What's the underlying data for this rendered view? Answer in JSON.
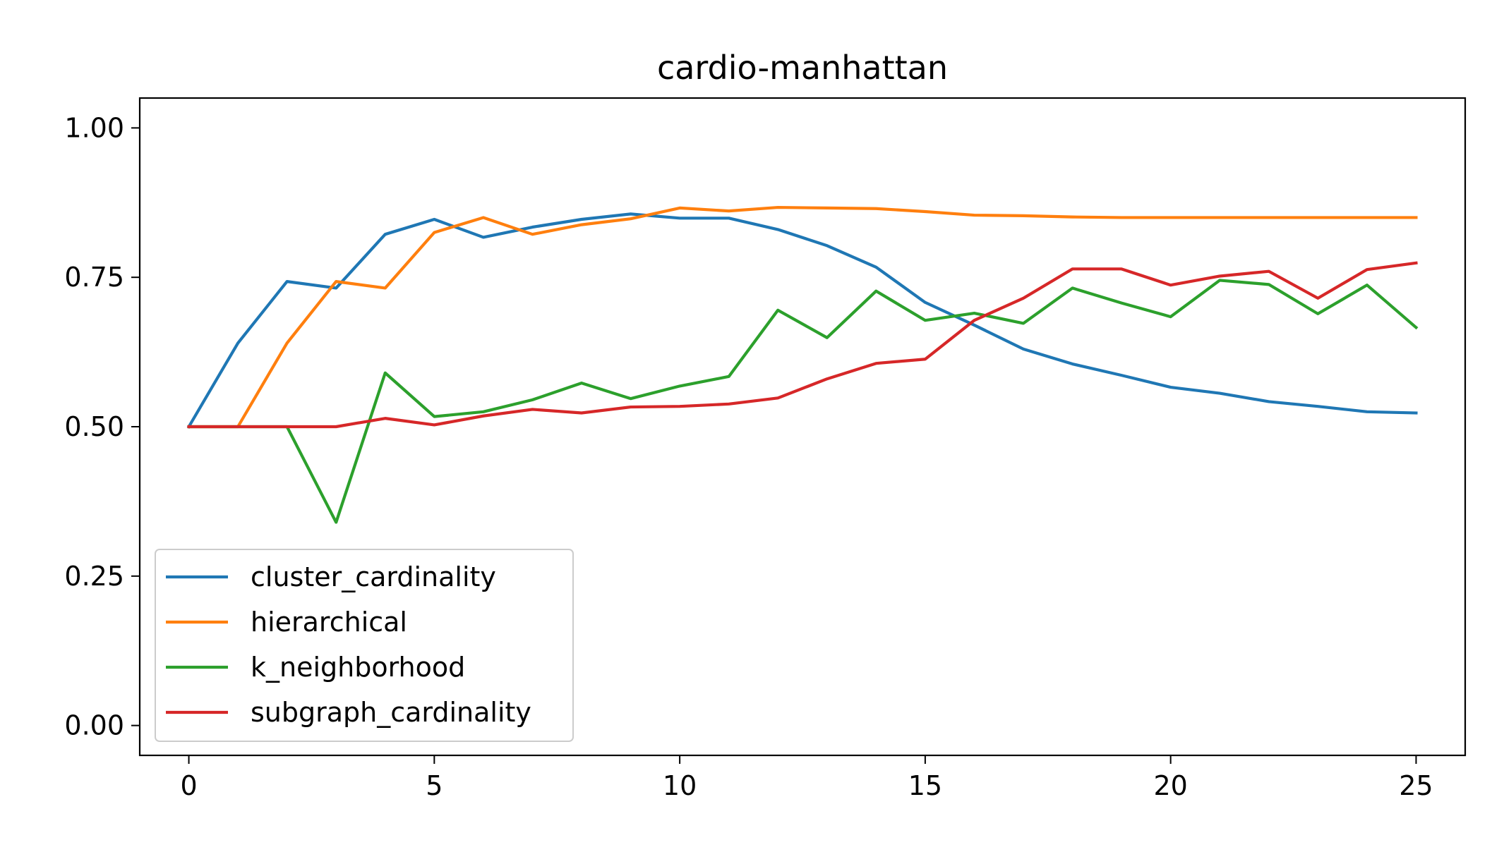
{
  "chart_data": {
    "type": "line",
    "title": "cardio-manhattan",
    "xlabel": "",
    "ylabel": "",
    "xlim": [
      -1,
      26
    ],
    "ylim": [
      -0.05,
      1.05
    ],
    "xticks": [
      0,
      5,
      10,
      15,
      20,
      25
    ],
    "xtick_labels": [
      "0",
      "5",
      "10",
      "15",
      "20",
      "25"
    ],
    "yticks": [
      0.0,
      0.25,
      0.5,
      0.75,
      1.0
    ],
    "ytick_labels": [
      "0.00",
      "0.25",
      "0.50",
      "0.75",
      "1.00"
    ],
    "grid": false,
    "legend_position": "lower-left",
    "x": [
      0,
      1,
      2,
      3,
      4,
      5,
      6,
      7,
      8,
      9,
      10,
      11,
      12,
      13,
      14,
      15,
      16,
      17,
      18,
      19,
      20,
      21,
      22,
      23,
      24,
      25
    ],
    "series": [
      {
        "name": "cluster_cardinality",
        "color": "#1f77b4",
        "values": [
          0.5,
          0.64,
          0.743,
          0.732,
          0.822,
          0.847,
          0.817,
          0.834,
          0.847,
          0.856,
          0.849,
          0.849,
          0.83,
          0.803,
          0.767,
          0.708,
          0.67,
          0.63,
          0.605,
          0.586,
          0.566,
          0.556,
          0.542,
          0.534,
          0.525,
          0.523
        ]
      },
      {
        "name": "hierarchical",
        "color": "#ff7f0e",
        "values": [
          0.5,
          0.5,
          0.64,
          0.743,
          0.732,
          0.825,
          0.85,
          0.822,
          0.838,
          0.848,
          0.866,
          0.861,
          0.867,
          0.866,
          0.865,
          0.86,
          0.854,
          0.853,
          0.851,
          0.85,
          0.85,
          0.85,
          0.85,
          0.85,
          0.85,
          0.85
        ]
      },
      {
        "name": "k_neighborhood",
        "color": "#2ca02c",
        "values": [
          0.5,
          0.5,
          0.5,
          0.34,
          0.59,
          0.517,
          0.525,
          0.545,
          0.573,
          0.547,
          0.568,
          0.584,
          0.695,
          0.649,
          0.727,
          0.678,
          0.69,
          0.673,
          0.732,
          0.707,
          0.684,
          0.745,
          0.738,
          0.689,
          0.737,
          0.666
        ]
      },
      {
        "name": "subgraph_cardinality",
        "color": "#d62728",
        "values": [
          0.5,
          0.5,
          0.5,
          0.5,
          0.514,
          0.503,
          0.518,
          0.529,
          0.523,
          0.533,
          0.534,
          0.538,
          0.548,
          0.58,
          0.606,
          0.613,
          0.678,
          0.715,
          0.764,
          0.764,
          0.737,
          0.752,
          0.76,
          0.715,
          0.763,
          0.774
        ]
      }
    ]
  }
}
